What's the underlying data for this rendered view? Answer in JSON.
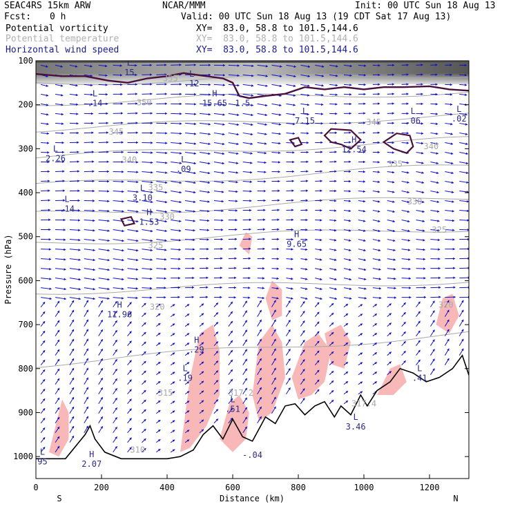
{
  "header": {
    "model": "SEAC4RS 15km ARW",
    "center": "NCAR/MMM",
    "init": "Init: 00 UTC Sun 18 Aug 13",
    "fcst_label": "Fcst:",
    "fcst_value": "0 h",
    "valid": "Valid: 00 UTC Sun 18 Aug 13 (19 CDT Sat 17 Aug 13)"
  },
  "fields": [
    {
      "name": "Potential vorticity",
      "xy": "XY=  83.0, 58.8 to 101.5,144.6"
    },
    {
      "name": "Potential temperature",
      "xy": "XY=  83.0, 58.8 to 101.5,144.6"
    },
    {
      "name": "Horizontal wind speed",
      "xy": "XY=  83.0, 58.8 to 101.5,144.6"
    }
  ],
  "colors": {
    "pv": "#4a0f3a",
    "theta": "#a8a8a8",
    "wind": "#1010c0",
    "pv_fill": "#f8b8b8",
    "terrain": "#000000"
  },
  "chart_data": {
    "type": "cross-section",
    "xlabel": "Distance (km)",
    "ylabel": "Pressure (hPa)",
    "xlim": [
      0,
      1320
    ],
    "ylim": [
      1050,
      100
    ],
    "x_ticks": [
      0,
      200,
      400,
      600,
      800,
      1000,
      1200
    ],
    "y_ticks": [
      100,
      200,
      300,
      400,
      500,
      600,
      700,
      800,
      900,
      1000
    ],
    "x_end_labels": [
      "S",
      "N"
    ],
    "terrain": [
      [
        0,
        1005
      ],
      [
        90,
        1005
      ],
      [
        150,
        950
      ],
      [
        165,
        930
      ],
      [
        180,
        960
      ],
      [
        210,
        990
      ],
      [
        260,
        1005
      ],
      [
        400,
        1005
      ],
      [
        440,
        1000
      ],
      [
        480,
        985
      ],
      [
        510,
        950
      ],
      [
        540,
        930
      ],
      [
        570,
        960
      ],
      [
        600,
        915
      ],
      [
        630,
        955
      ],
      [
        660,
        965
      ],
      [
        700,
        910
      ],
      [
        730,
        925
      ],
      [
        760,
        885
      ],
      [
        790,
        880
      ],
      [
        820,
        905
      ],
      [
        850,
        885
      ],
      [
        880,
        875
      ],
      [
        910,
        910
      ],
      [
        930,
        885
      ],
      [
        960,
        905
      ],
      [
        990,
        860
      ],
      [
        1010,
        885
      ],
      [
        1040,
        850
      ],
      [
        1080,
        830
      ],
      [
        1110,
        800
      ],
      [
        1150,
        810
      ],
      [
        1190,
        830
      ],
      [
        1230,
        820
      ],
      [
        1270,
        800
      ],
      [
        1300,
        770
      ],
      [
        1320,
        815
      ]
    ],
    "theta_labels": [
      {
        "text": "355",
        "x": 410,
        "p": 140
      },
      {
        "text": "350",
        "x": 330,
        "p": 195
      },
      {
        "text": "345",
        "x": 245,
        "p": 262
      },
      {
        "text": "345",
        "x": 1030,
        "p": 240
      },
      {
        "text": "340",
        "x": 285,
        "p": 325
      },
      {
        "text": "340",
        "x": 1205,
        "p": 295
      },
      {
        "text": "335",
        "x": 365,
        "p": 388
      },
      {
        "text": "335",
        "x": 1095,
        "p": 335
      },
      {
        "text": "330",
        "x": 400,
        "p": 455
      },
      {
        "text": "330",
        "x": 1155,
        "p": 420
      },
      {
        "text": "325",
        "x": 365,
        "p": 520
      },
      {
        "text": "325",
        "x": 1230,
        "p": 485
      },
      {
        "text": "320",
        "x": 370,
        "p": 660
      },
      {
        "text": "320",
        "x": 1250,
        "p": 655
      },
      {
        "text": "315",
        "x": 395,
        "p": 855
      },
      {
        "text": "317.2",
        "x": 625,
        "p": 855
      },
      {
        "text": "317.4",
        "x": 1000,
        "p": 880
      },
      {
        "text": "310",
        "x": 310,
        "p": 985
      }
    ],
    "highs_lows": [
      {
        "letter": "L",
        "value": "15",
        "x": 285,
        "p": 130
      },
      {
        "letter": "L",
        "value": ".12",
        "x": 475,
        "p": 155
      },
      {
        "letter": "L",
        "value": ".14",
        "x": 180,
        "p": 200
      },
      {
        "letter": "H",
        "value": "15.65",
        "x": 545,
        "p": 200
      },
      {
        "letter": "",
        "value": "1.5",
        "x": 630,
        "p": 200
      },
      {
        "letter": "L",
        "value": "7.15",
        "x": 820,
        "p": 240
      },
      {
        "letter": "L",
        "value": ".06",
        "x": 1150,
        "p": 240
      },
      {
        "letter": "L",
        "value": ".02",
        "x": 1290,
        "p": 235
      },
      {
        "letter": "H",
        "value": "12.54",
        "x": 970,
        "p": 305
      },
      {
        "letter": "L",
        "value": "2.26",
        "x": 60,
        "p": 325
      },
      {
        "letter": "L",
        "value": ".09",
        "x": 450,
        "p": 350
      },
      {
        "letter": "L",
        "value": "3.10",
        "x": 325,
        "p": 415
      },
      {
        "letter": "L",
        "value": ".14",
        "x": 95,
        "p": 440
      },
      {
        "letter": "H",
        "value": "1.53",
        "x": 345,
        "p": 470
      },
      {
        "letter": "H",
        "value": "9.65",
        "x": 795,
        "p": 520
      },
      {
        "letter": "H",
        "value": "11.96",
        "x": 255,
        "p": 680
      },
      {
        "letter": "H",
        "value": ".29",
        "x": 490,
        "p": 760
      },
      {
        "letter": "L",
        "value": ".19",
        "x": 455,
        "p": 825
      },
      {
        "letter": "L",
        "value": ".51",
        "x": 600,
        "p": 895
      },
      {
        "letter": "L",
        "value": ".41",
        "x": 1170,
        "p": 825
      },
      {
        "letter": "L",
        "value": "3.46",
        "x": 975,
        "p": 935
      },
      {
        "letter": "H",
        "value": "2.07",
        "x": 170,
        "p": 1020
      },
      {
        "letter": "L",
        "value": "95",
        "x": 20,
        "p": 1015
      },
      {
        "letter": "",
        "value": "-.04",
        "x": 660,
        "p": 1000
      }
    ]
  }
}
